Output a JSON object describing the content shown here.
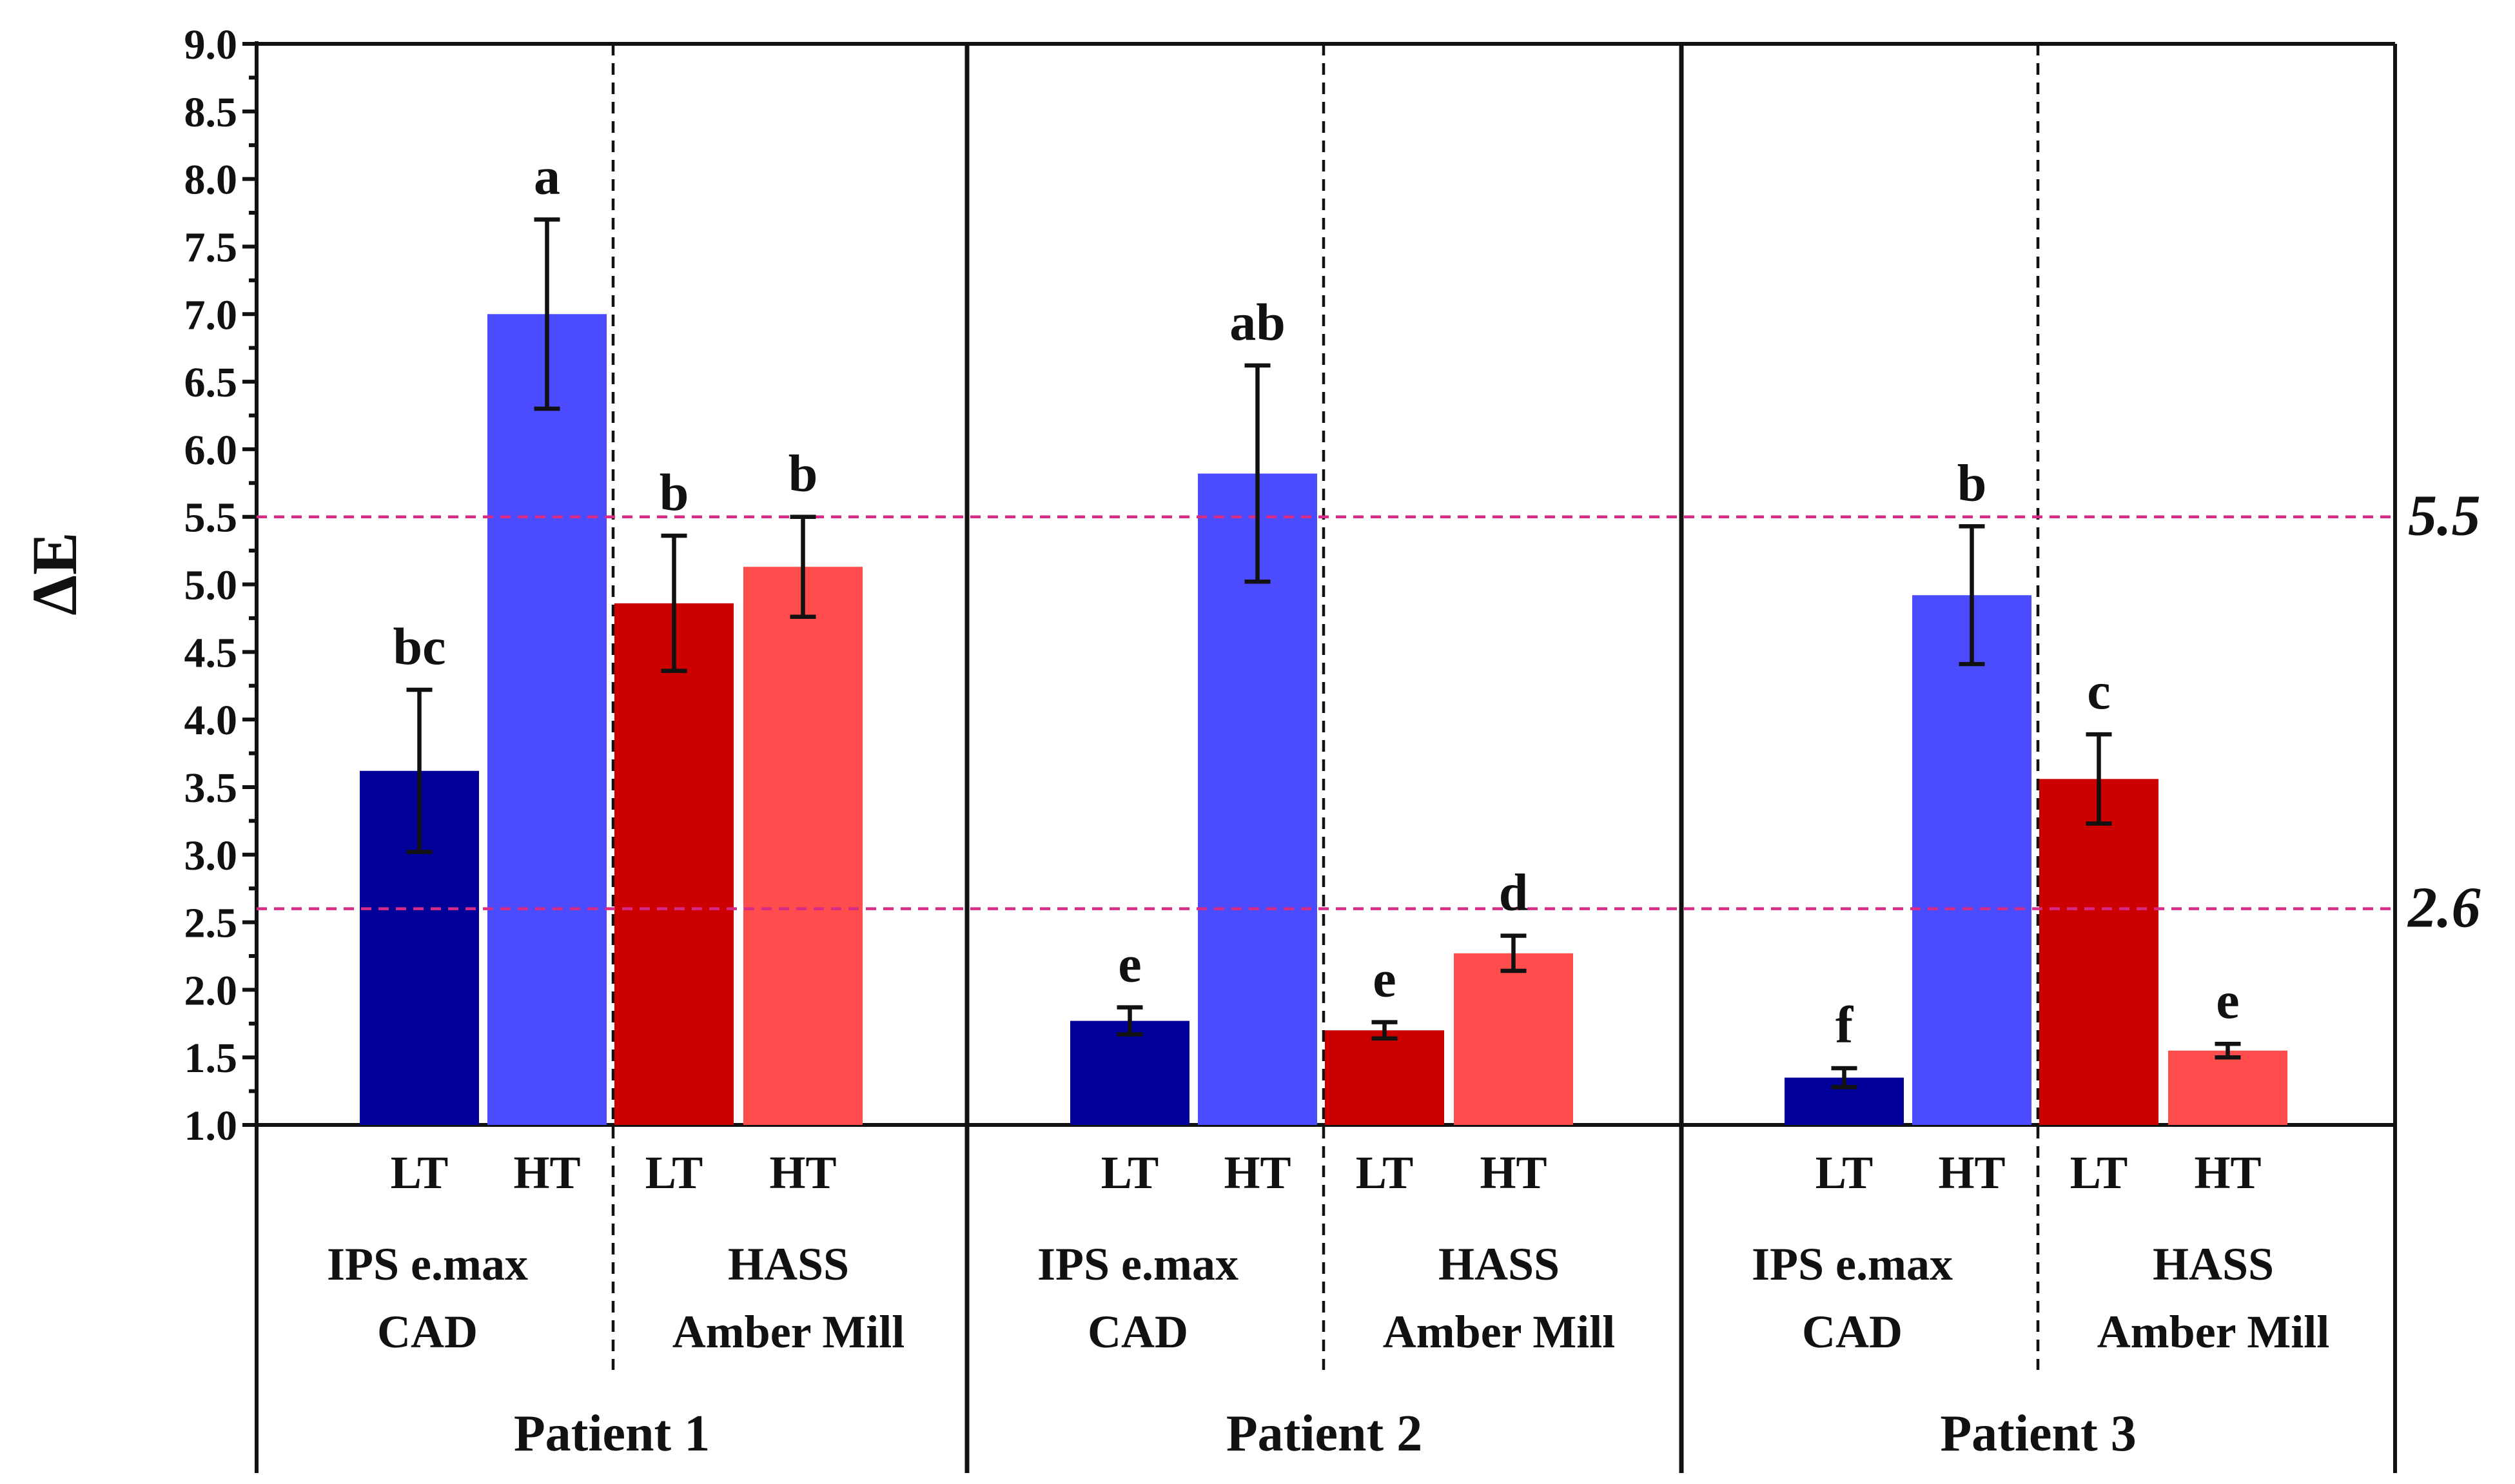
{
  "chart_data": {
    "type": "bar",
    "title": "",
    "xlabel": "",
    "ylabel": "ΔE",
    "ylim": [
      1.0,
      9.0
    ],
    "yticks": [
      "1.0",
      "1.5",
      "2.0",
      "2.5",
      "3.0",
      "3.5",
      "4.0",
      "4.5",
      "5.0",
      "5.5",
      "6.0",
      "6.5",
      "7.0",
      "7.5",
      "8.0",
      "8.5",
      "9.0"
    ],
    "grid": false,
    "legend": "none",
    "colors": {
      "ips_lt": "#000098",
      "ips_ht": "#4b4bff",
      "hass_lt": "#cc0000",
      "hass_ht": "#ff4c4c",
      "reference": "#d62b86"
    },
    "reference_lines": [
      {
        "value": 5.5,
        "label": "5.5"
      },
      {
        "value": 2.6,
        "label": "2.6"
      }
    ],
    "patients": [
      {
        "label": "Patient 1",
        "materials": [
          {
            "name_lines": [
              "IPS e.max",
              "CAD"
            ],
            "bars": [
              {
                "series": "LT",
                "value": 3.62,
                "error": 0.6,
                "letter": "bc",
                "color_key": "ips_lt"
              },
              {
                "series": "HT",
                "value": 7.0,
                "error": 0.7,
                "letter": "a",
                "color_key": "ips_ht"
              }
            ]
          },
          {
            "name_lines": [
              "HASS",
              "Amber Mill"
            ],
            "bars": [
              {
                "series": "LT",
                "value": 4.86,
                "error": 0.5,
                "letter": "b",
                "color_key": "hass_lt"
              },
              {
                "series": "HT",
                "value": 5.13,
                "error": 0.37,
                "letter": "b",
                "color_key": "hass_ht"
              }
            ]
          }
        ]
      },
      {
        "label": "Patient 2",
        "materials": [
          {
            "name_lines": [
              "IPS e.max",
              "CAD"
            ],
            "bars": [
              {
                "series": "LT",
                "value": 1.77,
                "error": 0.1,
                "letter": "e",
                "color_key": "ips_lt"
              },
              {
                "series": "HT",
                "value": 5.82,
                "error": 0.8,
                "letter": "ab",
                "color_key": "ips_ht"
              }
            ]
          },
          {
            "name_lines": [
              "HASS",
              "Amber Mill"
            ],
            "bars": [
              {
                "series": "LT",
                "value": 1.7,
                "error": 0.06,
                "letter": "e",
                "color_key": "hass_lt"
              },
              {
                "series": "HT",
                "value": 2.27,
                "error": 0.13,
                "letter": "d",
                "color_key": "hass_ht"
              }
            ]
          }
        ]
      },
      {
        "label": "Patient 3",
        "materials": [
          {
            "name_lines": [
              "IPS e.max",
              "CAD"
            ],
            "bars": [
              {
                "series": "LT",
                "value": 1.35,
                "error": 0.07,
                "letter": "f",
                "color_key": "ips_lt"
              },
              {
                "series": "HT",
                "value": 4.92,
                "error": 0.51,
                "letter": "b",
                "color_key": "ips_ht"
              }
            ]
          },
          {
            "name_lines": [
              "HASS",
              "Amber Mill"
            ],
            "bars": [
              {
                "series": "LT",
                "value": 3.56,
                "error": 0.33,
                "letter": "c",
                "color_key": "hass_lt"
              },
              {
                "series": "HT",
                "value": 1.55,
                "error": 0.05,
                "letter": "e",
                "color_key": "hass_ht"
              }
            ]
          }
        ]
      }
    ]
  }
}
